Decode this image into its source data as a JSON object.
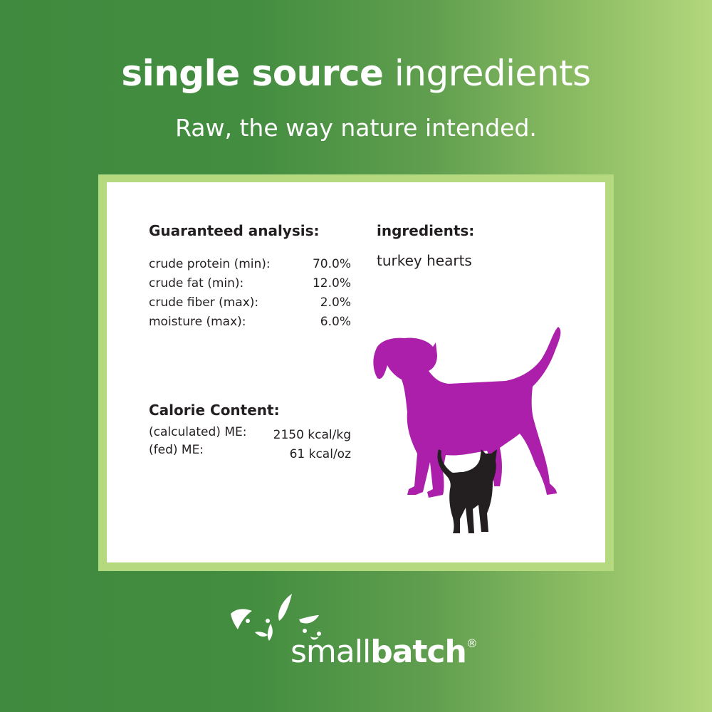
{
  "header": {
    "title_bold": "single source",
    "title_light": "ingredients",
    "tagline": "Raw, the way nature intended."
  },
  "analysis": {
    "heading": "Guaranteed analysis:",
    "rows": [
      {
        "label": "crude protein (min):",
        "value": "70.0%"
      },
      {
        "label": "crude fat (min):",
        "value": "12.0%"
      },
      {
        "label": "crude fiber (max):",
        "value": "2.0%"
      },
      {
        "label": "moisture (max):",
        "value": "6.0%"
      }
    ]
  },
  "ingredients": {
    "heading": "ingredients:",
    "text": "turkey hearts"
  },
  "calories": {
    "heading": "Calorie Content:",
    "rows": [
      {
        "label": "(calculated) ME:",
        "value": "2150 kcal/kg"
      },
      {
        "label": "(fed) ME:",
        "value": "61 kcal/oz"
      }
    ]
  },
  "brand": {
    "light": "small",
    "bold": "batch",
    "mark": "®"
  },
  "colors": {
    "dog": "#ab1fab",
    "cat": "#231f20",
    "border": "#b5d97e"
  }
}
